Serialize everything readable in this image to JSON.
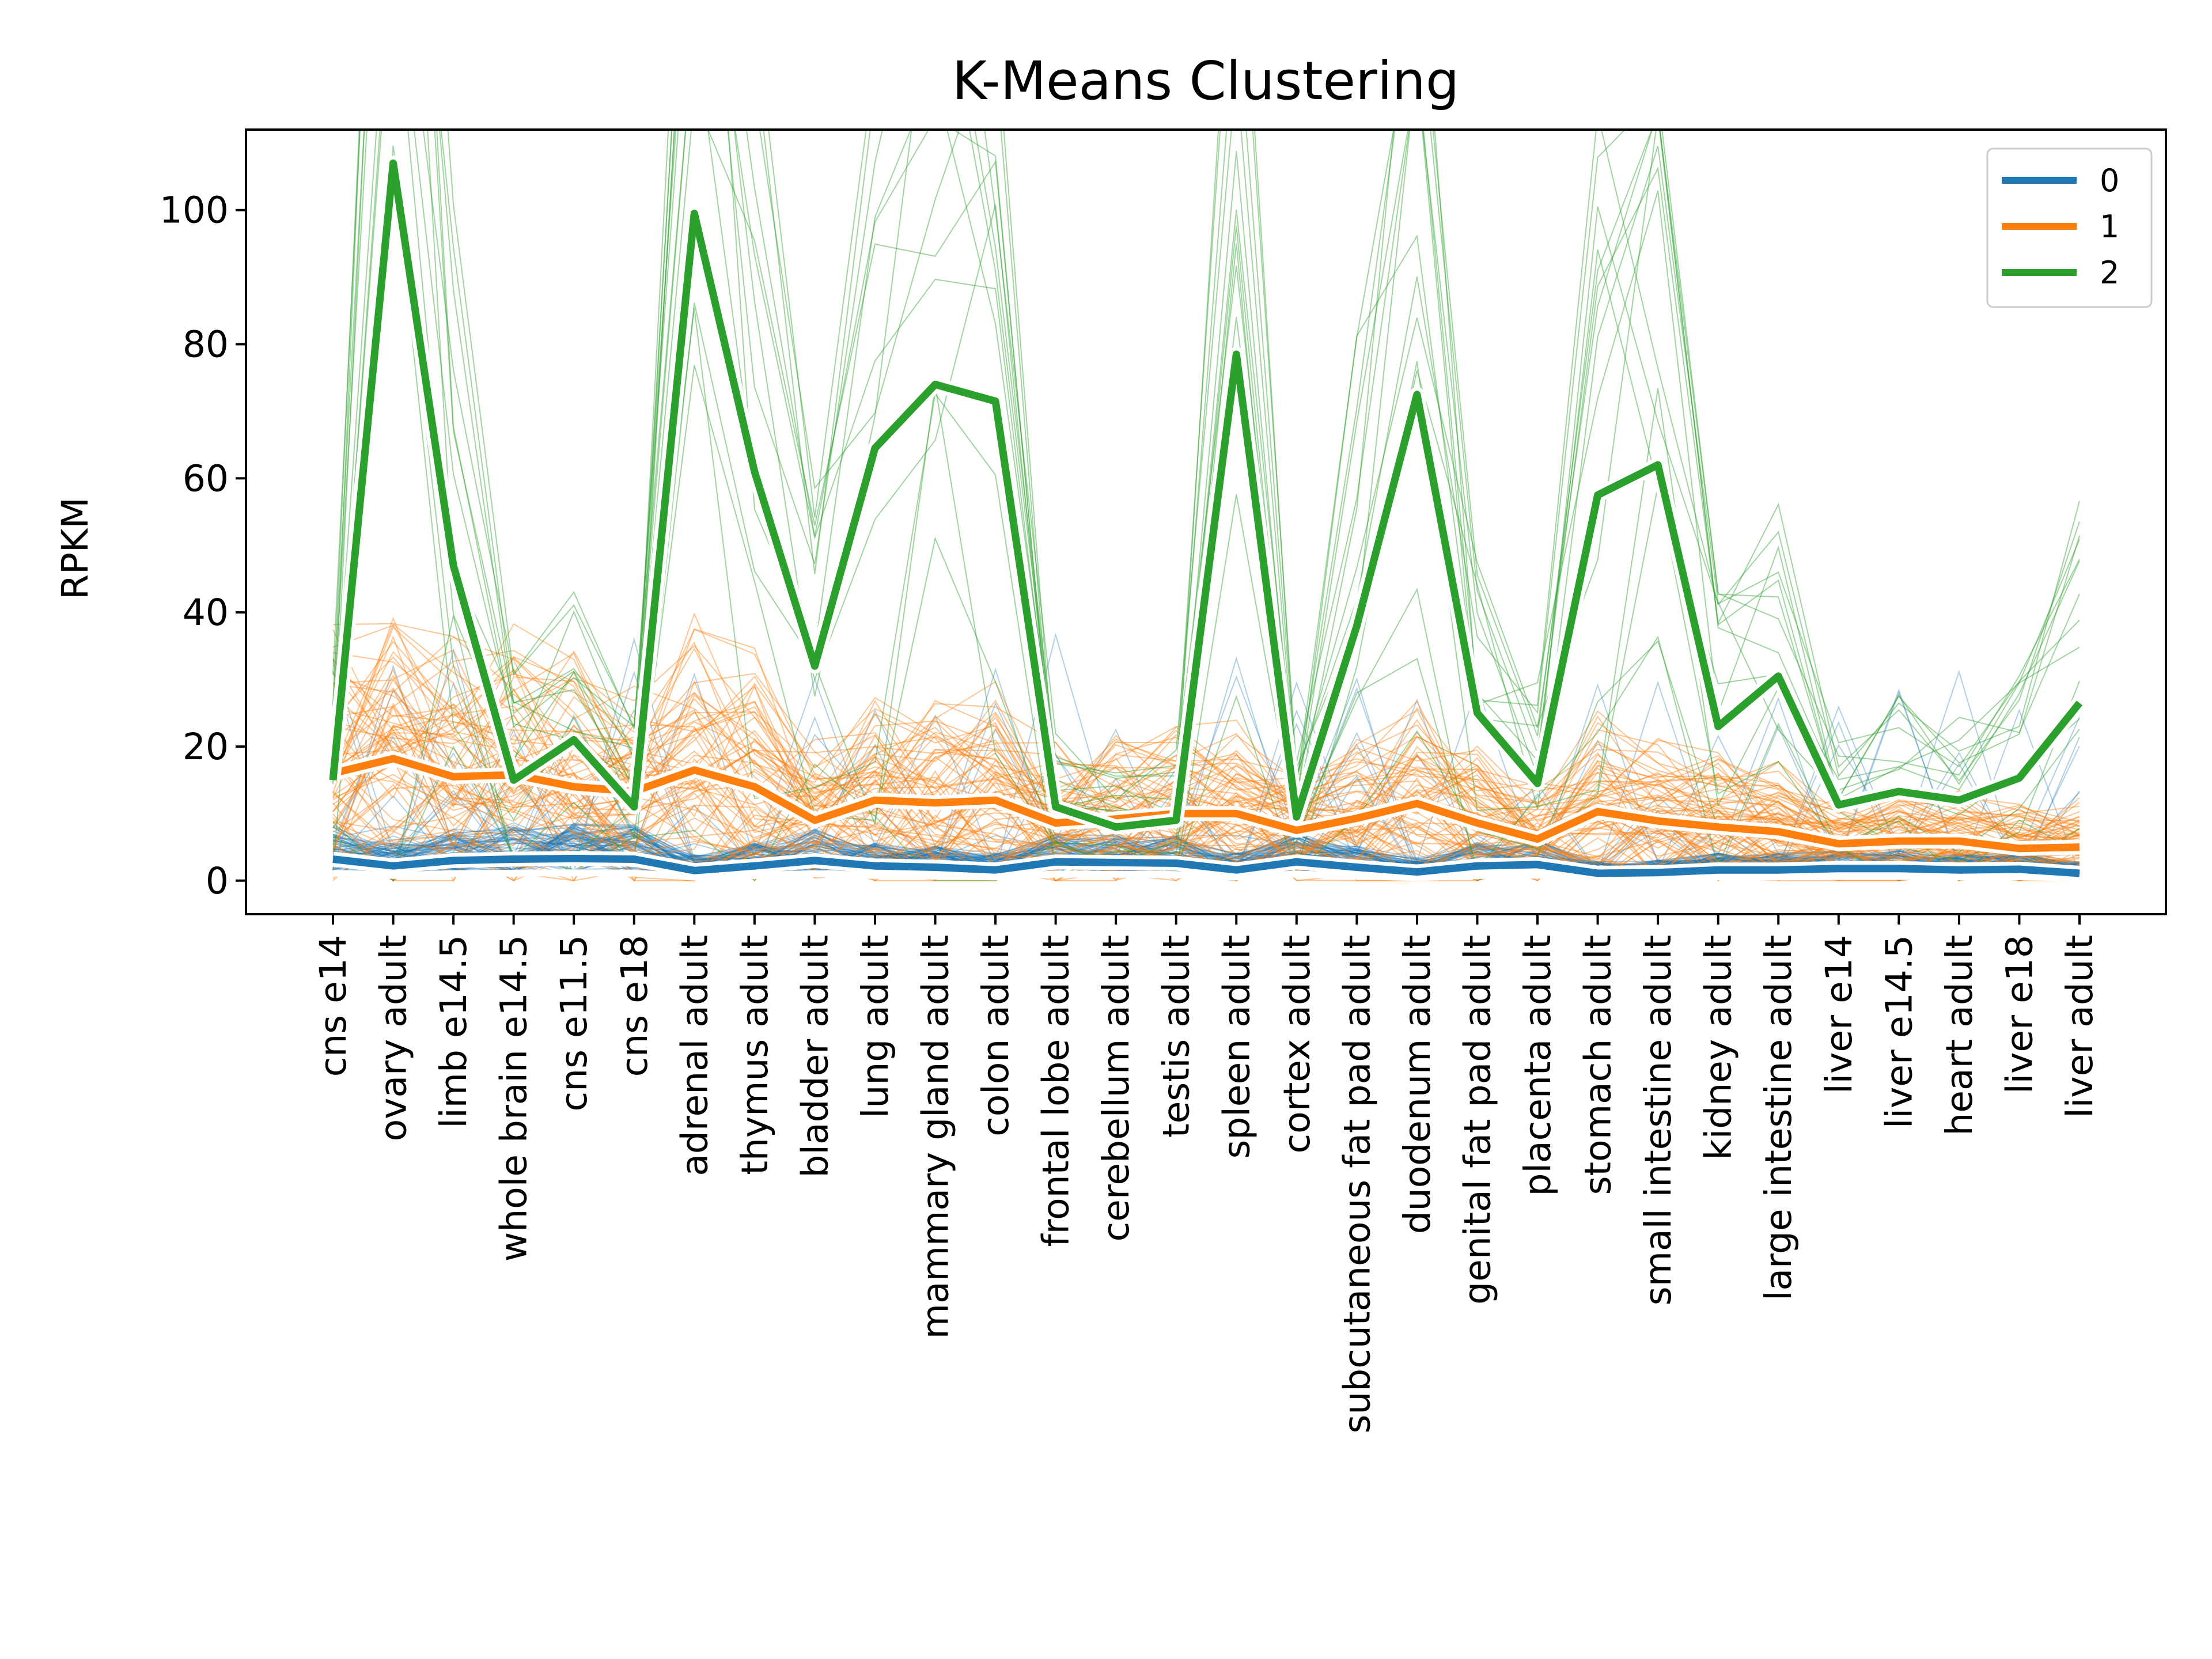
{
  "chart_data": {
    "type": "line",
    "title": "K-Means Clustering",
    "xlabel": "",
    "ylabel": "RPKM",
    "ylim": [
      -5,
      112
    ],
    "yticks": [
      0,
      20,
      40,
      60,
      80,
      100
    ],
    "grid": false,
    "legend_position": "top-right",
    "categories": [
      "cns e14",
      "ovary adult",
      "limb e14.5",
      "whole brain e14.5",
      "cns e11.5",
      "cns e18",
      "adrenal adult",
      "thymus adult",
      "bladder adult",
      "lung adult",
      "mammary gland adult",
      "colon adult",
      "frontal lobe adult",
      "cerebellum adult",
      "testis adult",
      "spleen adult",
      "cortex adult",
      "subcutaneous fat pad adult",
      "duodenum adult",
      "genital fat pad adult",
      "placenta adult",
      "stomach adult",
      "small intestine adult",
      "kidney adult",
      "large intestine adult",
      "liver e14",
      "liver e14.5",
      "heart adult",
      "liver e18",
      "liver adult"
    ],
    "series": [
      {
        "name": "0",
        "color": "#1f77b4",
        "values": [
          3.2,
          2.2,
          3.0,
          3.2,
          3.3,
          3.2,
          1.5,
          2.2,
          3.0,
          2.2,
          2.0,
          1.6,
          2.8,
          2.7,
          2.6,
          1.6,
          2.8,
          2.0,
          1.3,
          2.2,
          2.4,
          1.1,
          1.2,
          1.6,
          1.6,
          1.8,
          1.8,
          1.6,
          1.7,
          1.1
        ]
      },
      {
        "name": "1",
        "color": "#ff7f0e",
        "values": [
          16.0,
          18.2,
          15.5,
          15.8,
          14.0,
          13.3,
          16.5,
          14.0,
          9.0,
          12.0,
          11.6,
          12.0,
          8.6,
          9.2,
          10.0,
          10.0,
          7.5,
          9.3,
          11.5,
          8.6,
          6.2,
          10.3,
          8.9,
          8.0,
          7.3,
          5.5,
          5.9,
          5.9,
          4.8,
          5.0
        ]
      },
      {
        "name": "2",
        "color": "#2ca02c",
        "values": [
          15.0,
          107.0,
          47.0,
          15.0,
          21.0,
          11.0,
          99.5,
          61.0,
          32.0,
          64.5,
          74.0,
          71.5,
          11.0,
          8.0,
          9.0,
          78.5,
          9.5,
          38.0,
          72.5,
          25.0,
          14.5,
          57.5,
          62.0,
          23.0,
          30.5,
          11.3,
          13.3,
          12.0,
          15.3,
          26.5
        ]
      }
    ]
  },
  "colors": {
    "series_0": "#1f77b4",
    "series_1": "#ff7f0e",
    "series_2": "#2ca02c"
  }
}
